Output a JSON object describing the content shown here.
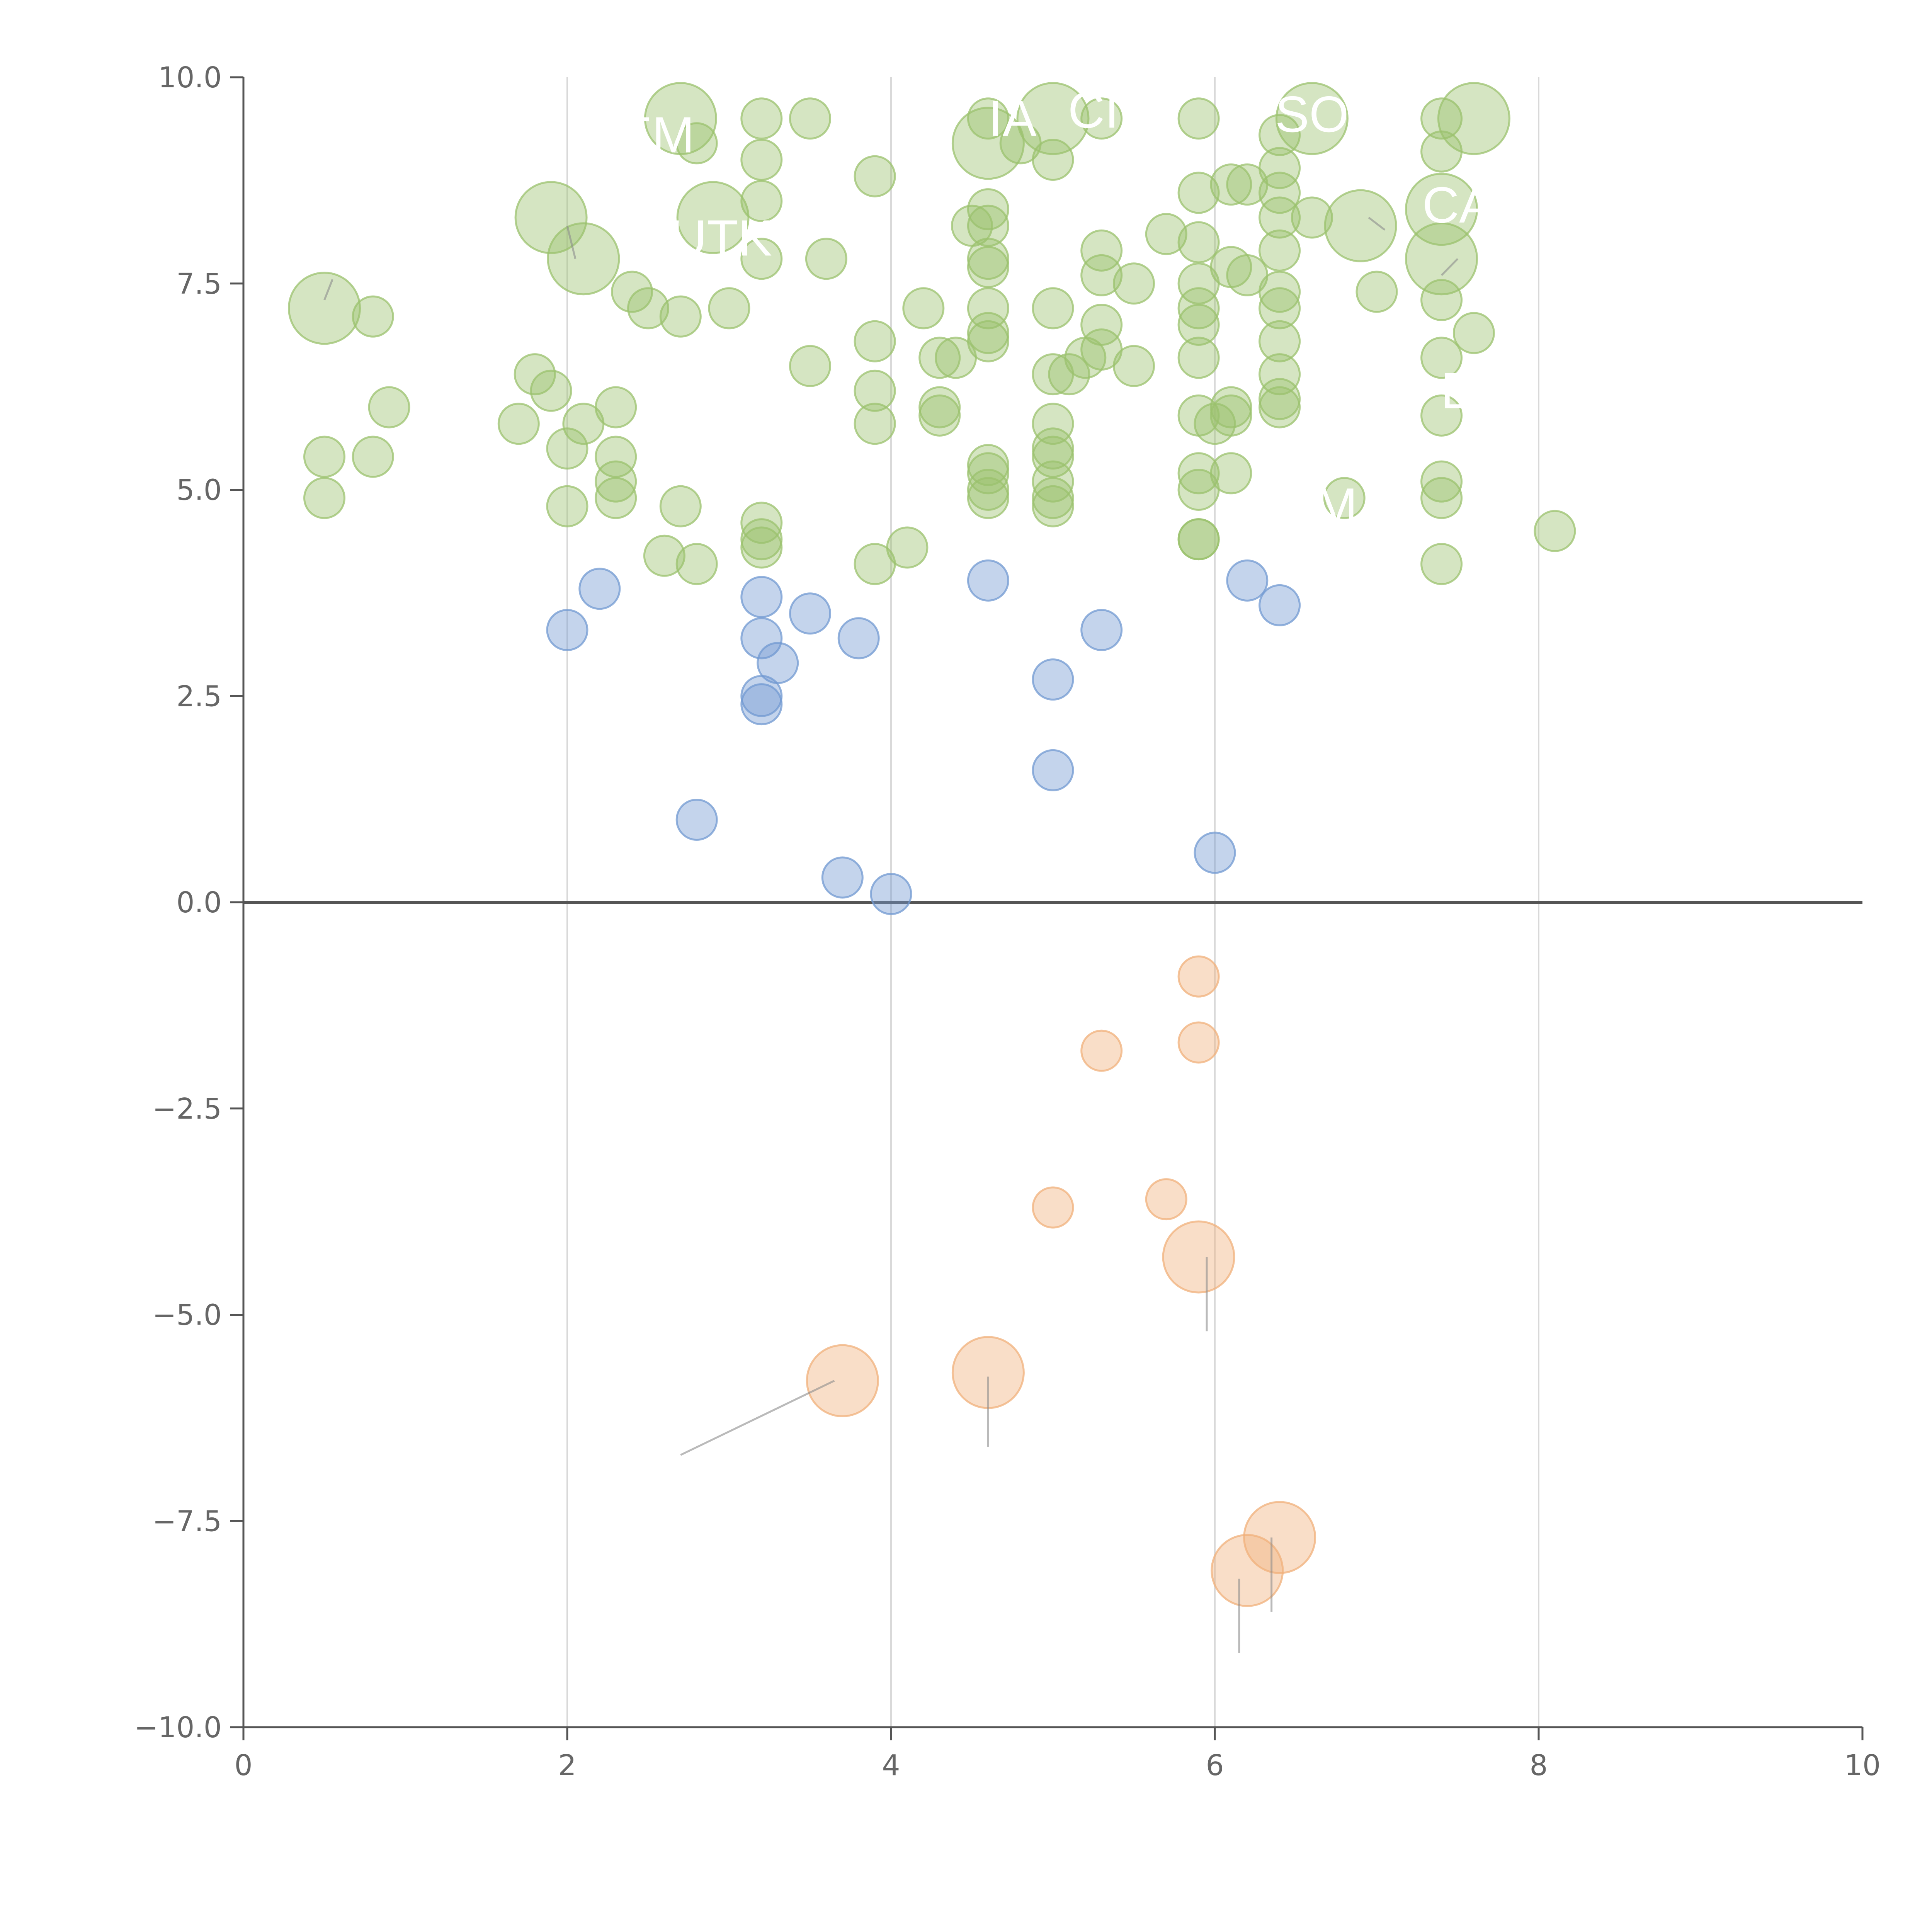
{
  "chart_data": {
    "type": "scatter",
    "title": "",
    "xlabel": "",
    "ylabel": "",
    "xlim": [
      0,
      10
    ],
    "ylim": [
      -10,
      10
    ],
    "grid": "vertical",
    "x_ticks": [
      0,
      2,
      4,
      6,
      8,
      10
    ],
    "y_ticks": [
      10,
      7.5,
      5,
      2.5,
      0,
      -2.5,
      -5,
      -7.5,
      -10
    ],
    "x_tick_labels": [
      "0",
      "2",
      "4",
      "6",
      "8",
      "10"
    ],
    "y_tick_labels": [
      "10.0",
      "7.5",
      "5.0",
      "2.5",
      "0.0",
      "−2.5",
      "−5.0",
      "−7.5",
      "−10.0"
    ],
    "reference_line_y": 0,
    "colors": {
      "high": "#9bc26e",
      "mid": "#7299d1",
      "negative": "#f0b07b",
      "axis": "#555555",
      "grid": "#d9d9d9",
      "leader": "#8c8c8c"
    },
    "series": [
      {
        "name": "high",
        "points": [
          [
            0.5,
            7.2,
            2
          ],
          [
            0.8,
            7.1,
            1
          ],
          [
            0.9,
            6.0,
            1
          ],
          [
            0.5,
            5.4,
            1
          ],
          [
            0.8,
            5.4,
            1
          ],
          [
            0.5,
            4.9,
            1
          ],
          [
            1.9,
            8.3,
            2
          ],
          [
            2.1,
            7.8,
            2
          ],
          [
            2.7,
            9.5,
            2
          ],
          [
            2.9,
            8.3,
            2
          ],
          [
            2.8,
            9.2,
            1
          ],
          [
            1.8,
            6.4,
            1
          ],
          [
            1.9,
            6.2,
            1
          ],
          [
            2.1,
            5.8,
            1
          ],
          [
            2.0,
            5.5,
            1
          ],
          [
            1.7,
            5.8,
            1
          ],
          [
            2.3,
            6.0,
            1
          ],
          [
            2.4,
            7.4,
            1
          ],
          [
            2.5,
            7.2,
            1
          ],
          [
            2.7,
            7.1,
            1
          ],
          [
            3.0,
            7.2,
            1
          ],
          [
            2.3,
            5.4,
            1
          ],
          [
            2.3,
            5.1,
            1
          ],
          [
            2.3,
            4.9,
            1
          ],
          [
            2.0,
            4.8,
            1
          ],
          [
            2.7,
            4.8,
            1
          ],
          [
            2.6,
            4.2,
            1
          ],
          [
            2.8,
            4.1,
            1
          ],
          [
            3.2,
            9.5,
            1
          ],
          [
            3.2,
            9.0,
            1
          ],
          [
            3.2,
            8.5,
            1
          ],
          [
            3.2,
            7.8,
            1
          ],
          [
            3.5,
            9.5,
            1
          ],
          [
            3.6,
            7.8,
            1
          ],
          [
            3.9,
            8.8,
            1
          ],
          [
            3.5,
            6.5,
            1
          ],
          [
            3.9,
            6.8,
            1
          ],
          [
            3.9,
            6.2,
            1
          ],
          [
            3.9,
            5.8,
            1
          ],
          [
            3.2,
            4.6,
            1
          ],
          [
            3.2,
            4.4,
            1
          ],
          [
            3.2,
            4.3,
            1
          ],
          [
            3.9,
            4.1,
            1
          ],
          [
            4.1,
            4.3,
            1
          ],
          [
            4.6,
            9.2,
            2
          ],
          [
            4.6,
            9.5,
            1
          ],
          [
            4.8,
            9.2,
            1
          ],
          [
            5.0,
            9.5,
            2
          ],
          [
            5.0,
            9.0,
            1
          ],
          [
            5.3,
            9.5,
            1
          ],
          [
            4.6,
            8.4,
            1
          ],
          [
            4.6,
            8.2,
            1
          ],
          [
            4.5,
            8.2,
            1
          ],
          [
            4.6,
            7.8,
            1
          ],
          [
            4.6,
            7.7,
            1
          ],
          [
            4.6,
            7.2,
            1
          ],
          [
            4.6,
            6.9,
            1
          ],
          [
            4.6,
            6.8,
            1
          ],
          [
            4.2,
            7.2,
            1
          ],
          [
            4.3,
            6.6,
            1
          ],
          [
            4.4,
            6.6,
            1
          ],
          [
            4.3,
            6.0,
            1
          ],
          [
            4.3,
            5.9,
            1
          ],
          [
            4.6,
            5.3,
            1
          ],
          [
            4.6,
            5.2,
            1
          ],
          [
            4.6,
            5.0,
            1
          ],
          [
            4.6,
            4.9,
            1
          ],
          [
            5.0,
            7.2,
            1
          ],
          [
            5.3,
            7.9,
            1
          ],
          [
            5.3,
            7.6,
            1
          ],
          [
            5.5,
            7.5,
            1
          ],
          [
            5.3,
            7.0,
            1
          ],
          [
            5.3,
            6.7,
            1
          ],
          [
            5.2,
            6.6,
            1
          ],
          [
            5.1,
            6.4,
            1
          ],
          [
            5.0,
            6.4,
            1
          ],
          [
            5.5,
            6.5,
            1
          ],
          [
            5.0,
            5.8,
            1
          ],
          [
            5.0,
            5.5,
            1
          ],
          [
            5.0,
            5.4,
            1
          ],
          [
            5.0,
            5.1,
            1
          ],
          [
            5.0,
            4.9,
            1
          ],
          [
            5.0,
            4.8,
            1
          ],
          [
            5.7,
            8.1,
            1
          ],
          [
            5.9,
            9.5,
            1
          ],
          [
            5.9,
            8.6,
            1
          ],
          [
            5.9,
            8.0,
            1
          ],
          [
            5.9,
            7.5,
            1
          ],
          [
            5.9,
            7.2,
            1
          ],
          [
            5.9,
            7.0,
            1
          ],
          [
            5.9,
            6.6,
            1
          ],
          [
            5.9,
            5.9,
            1
          ],
          [
            5.9,
            5.2,
            1
          ],
          [
            5.9,
            5.0,
            1
          ],
          [
            5.9,
            4.4,
            1
          ],
          [
            5.9,
            4.4,
            1
          ],
          [
            6.1,
            8.7,
            1
          ],
          [
            6.2,
            8.7,
            1
          ],
          [
            6.1,
            7.7,
            1
          ],
          [
            6.2,
            7.6,
            1
          ],
          [
            6.1,
            6.0,
            1
          ],
          [
            6.0,
            5.8,
            1
          ],
          [
            6.1,
            5.9,
            1
          ],
          [
            6.1,
            5.2,
            1
          ],
          [
            6.4,
            9.3,
            1
          ],
          [
            6.6,
            9.5,
            2
          ],
          [
            6.4,
            8.9,
            1
          ],
          [
            6.4,
            8.6,
            1
          ],
          [
            6.4,
            8.3,
            1
          ],
          [
            6.4,
            7.9,
            1
          ],
          [
            6.4,
            7.4,
            1
          ],
          [
            6.4,
            7.2,
            1
          ],
          [
            6.4,
            6.8,
            1
          ],
          [
            6.4,
            6.4,
            1
          ],
          [
            6.4,
            6.1,
            1
          ],
          [
            6.4,
            6.0,
            1
          ],
          [
            6.6,
            8.3,
            1
          ],
          [
            6.9,
            8.2,
            2
          ],
          [
            7.0,
            7.4,
            1
          ],
          [
            6.8,
            4.9,
            1
          ],
          [
            7.4,
            9.5,
            1
          ],
          [
            7.4,
            9.1,
            1
          ],
          [
            7.4,
            8.4,
            2
          ],
          [
            7.4,
            7.8,
            2
          ],
          [
            7.6,
            9.5,
            2
          ],
          [
            7.4,
            7.3,
            1
          ],
          [
            7.6,
            6.9,
            1
          ],
          [
            7.4,
            6.6,
            1
          ],
          [
            7.4,
            5.9,
            1
          ],
          [
            7.4,
            5.1,
            1
          ],
          [
            7.4,
            4.9,
            1
          ],
          [
            7.4,
            4.1,
            1
          ],
          [
            8.1,
            4.5,
            1
          ]
        ]
      },
      {
        "name": "mid",
        "points": [
          [
            2.0,
            3.3,
            1
          ],
          [
            2.2,
            3.8,
            1
          ],
          [
            2.8,
            1.0,
            1
          ],
          [
            3.2,
            3.7,
            1
          ],
          [
            3.2,
            3.2,
            1
          ],
          [
            3.3,
            2.9,
            1
          ],
          [
            3.2,
            2.5,
            1
          ],
          [
            3.2,
            2.4,
            1
          ],
          [
            3.5,
            3.5,
            1
          ],
          [
            3.8,
            3.2,
            1
          ],
          [
            3.7,
            0.3,
            1
          ],
          [
            4.0,
            0.1,
            1
          ],
          [
            4.6,
            3.9,
            1
          ],
          [
            5.3,
            3.3,
            1
          ],
          [
            5.0,
            2.7,
            1
          ],
          [
            5.0,
            1.6,
            1
          ],
          [
            6.2,
            3.9,
            1
          ],
          [
            6.4,
            3.6,
            1
          ],
          [
            6.0,
            0.6,
            1
          ]
        ]
      },
      {
        "name": "negative",
        "points": [
          [
            5.9,
            -0.9,
            1
          ],
          [
            5.3,
            -1.8,
            1
          ],
          [
            5.9,
            -1.7,
            1
          ],
          [
            5.0,
            -3.7,
            1
          ],
          [
            5.7,
            -3.6,
            1
          ],
          [
            5.9,
            -4.3,
            2
          ],
          [
            3.7,
            -5.8,
            2
          ],
          [
            4.6,
            -5.7,
            2
          ],
          [
            6.4,
            -7.7,
            2
          ],
          [
            6.2,
            -8.1,
            2
          ]
        ]
      }
    ],
    "annotations": [
      {
        "text": "EM",
        "x": 2.55,
        "y": 9.3
      },
      {
        "text": "UTK",
        "x": 2.95,
        "y": 8.05
      },
      {
        "text": "IA",
        "x": 4.75,
        "y": 9.5
      },
      {
        "text": "CI",
        "x": 5.25,
        "y": 9.6
      },
      {
        "text": "SO",
        "x": 6.6,
        "y": 9.55
      },
      {
        "text": "CA",
        "x": 7.5,
        "y": 8.45
      },
      {
        "text": "B",
        "x": 7.5,
        "y": 6.2
      },
      {
        "text": "M",
        "x": 6.75,
        "y": 4.8
      }
    ],
    "leader_lines": [
      {
        "from": [
          2.7,
          -6.7
        ],
        "to": [
          3.65,
          -5.8
        ]
      },
      {
        "from": [
          4.6,
          -6.6
        ],
        "to": [
          4.6,
          -5.75
        ]
      },
      {
        "from": [
          5.95,
          -5.2
        ],
        "to": [
          5.95,
          -4.3
        ]
      },
      {
        "from": [
          6.15,
          -9.1
        ],
        "to": [
          6.15,
          -8.2
        ]
      },
      {
        "from": [
          6.35,
          -8.6
        ],
        "to": [
          6.35,
          -7.7
        ]
      },
      {
        "from": [
          0.5,
          7.3
        ],
        "to": [
          0.55,
          7.55
        ]
      },
      {
        "from": [
          2.05,
          7.8
        ],
        "to": [
          2.0,
          8.2
        ]
      },
      {
        "from": [
          6.95,
          8.3
        ],
        "to": [
          7.05,
          8.15
        ]
      },
      {
        "from": [
          7.5,
          7.8
        ],
        "to": [
          7.4,
          7.6
        ]
      }
    ]
  }
}
